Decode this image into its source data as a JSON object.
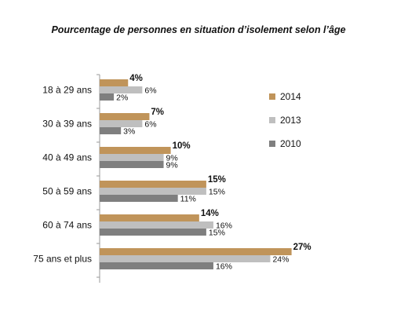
{
  "chart_data": {
    "type": "bar",
    "orientation": "horizontal",
    "title": "Pourcentage de personnes en situation d’isolement selon l’âge",
    "categories": [
      "18 à 29 ans",
      "30 à 39 ans",
      "40 à 49 ans",
      "50 à 59 ans",
      "60 à 74 ans",
      "75 ans et plus"
    ],
    "series": [
      {
        "name": "2014",
        "color": "#c0945a",
        "values": [
          4,
          7,
          10,
          15,
          14,
          27
        ],
        "labels": [
          "4%",
          "7%",
          "10%",
          "15%",
          "14%",
          "27%"
        ],
        "bold": true
      },
      {
        "name": "2013",
        "color": "#bfbfbf",
        "values": [
          6,
          6,
          9,
          15,
          16,
          24
        ],
        "labels": [
          "6%",
          "6%",
          "9%",
          "15%",
          "16%",
          "24%"
        ],
        "bold": false
      },
      {
        "name": "2010",
        "color": "#7f7f7f",
        "values": [
          2,
          3,
          9,
          11,
          15,
          16
        ],
        "labels": [
          "2%",
          "3%",
          "9%",
          "11%",
          "15%",
          "16%"
        ],
        "bold": false
      }
    ],
    "xlim": [
      0,
      28
    ],
    "legend_position": "right",
    "grid": false
  }
}
